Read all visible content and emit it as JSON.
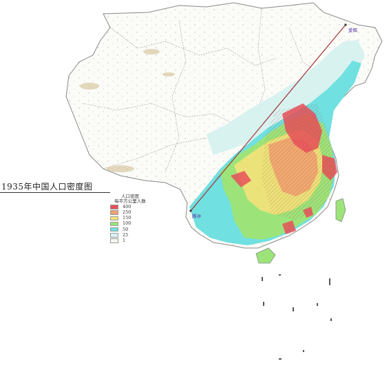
{
  "map_title": "1935年中国人口密度图",
  "legend": {
    "title_line1": "人口密度",
    "title_line2": "每平方公里人数",
    "items": [
      {
        "label": "400",
        "color": "#e8505a"
      },
      {
        "label": "250",
        "color": "#f0a070"
      },
      {
        "label": "150",
        "color": "#f4e27a"
      },
      {
        "label": "100",
        "color": "#9ce47a"
      },
      {
        "label": "50",
        "color": "#70e0e0"
      },
      {
        "label": "25",
        "color": "#d8f2f0"
      },
      {
        "label": "1",
        "color": "#f6f6f2"
      }
    ]
  },
  "cities": {
    "aihui": "爱辉",
    "tengchong": "腾冲"
  },
  "colors": {
    "land": "#fbfbf8",
    "border": "#888888",
    "divide_line": "#a03030",
    "sea": "#ffffff"
  }
}
